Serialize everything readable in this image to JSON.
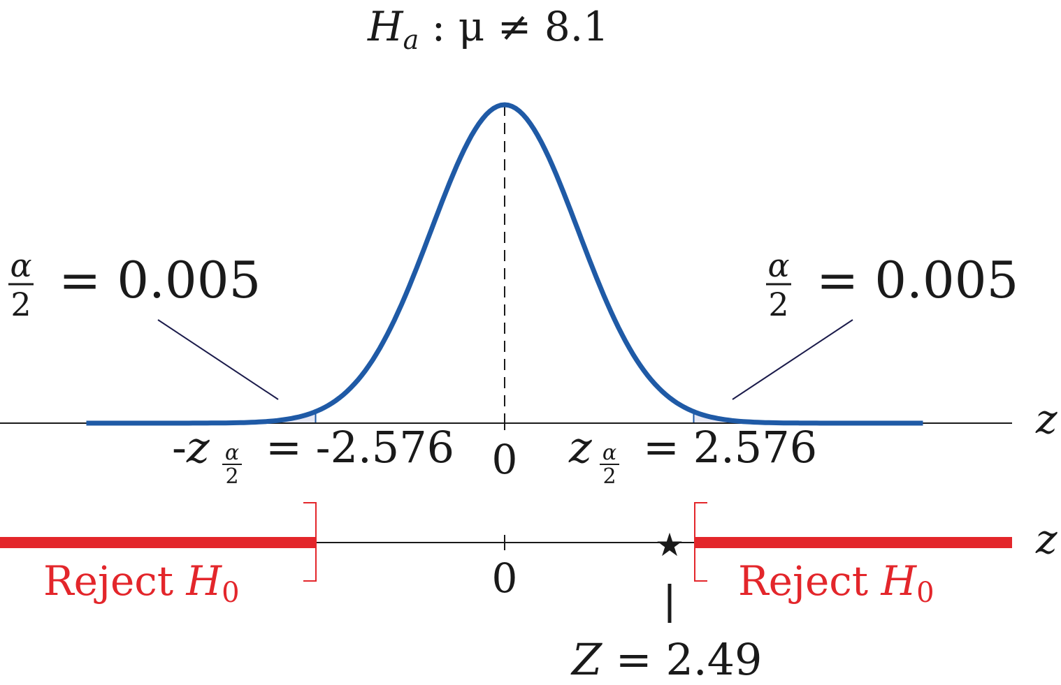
{
  "hypothesis": {
    "H": "H",
    "sub": "a",
    "text": " : μ ≠ 8.1"
  },
  "tails": {
    "left": {
      "alpha": "α",
      "den": "2",
      "eq": "= 0.005"
    },
    "right": {
      "alpha": "α",
      "den": "2",
      "eq": "= 0.005"
    }
  },
  "critical": {
    "left": {
      "prefix": "-",
      "z": "z",
      "num": "α",
      "den": "2",
      "rhs": "= -2.576"
    },
    "right": {
      "z": "z",
      "num": "α",
      "den": "2",
      "rhs": "= 2.576"
    },
    "center": "0"
  },
  "axis": {
    "z_top": "z",
    "z_bottom": "z",
    "center_bottom": "0"
  },
  "reject": {
    "left": {
      "text": "Reject ",
      "H": "H",
      "sub": "0"
    },
    "right": {
      "text": "Reject ",
      "H": "H",
      "sub": "0"
    }
  },
  "test_stat": {
    "star": "★",
    "Z": "Z",
    "rhs": " = 2.49"
  },
  "colors": {
    "curve": "#1f5aa6",
    "shade": "#e7e8f4",
    "reject": "#e3262b",
    "axis": "#1a1a1a"
  },
  "curve_params": {
    "mean": 0,
    "sd": 1,
    "z_min": -5.7,
    "z_max": 5.7,
    "z_crit": 2.576,
    "z_stat": 2.49
  }
}
